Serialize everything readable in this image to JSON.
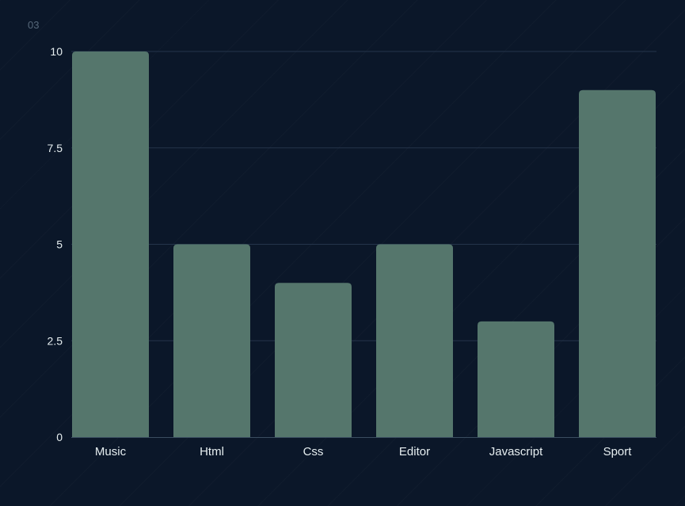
{
  "corner_label": "03",
  "colors": {
    "background": "#0b1729",
    "bar": "#55766c",
    "gridline": "#24344a",
    "axis": "#3a4d60",
    "text": "#e6eef0"
  },
  "chart_data": {
    "type": "bar",
    "categories": [
      "Music",
      "Html",
      "Css",
      "Editor",
      "Javascript",
      "Sport"
    ],
    "values": [
      10,
      5,
      4,
      5,
      3,
      9
    ],
    "yticks": [
      "0",
      "2.5",
      "5",
      "7.5",
      "10"
    ],
    "ylim": [
      0,
      10
    ],
    "grid": true,
    "legend": "none"
  }
}
